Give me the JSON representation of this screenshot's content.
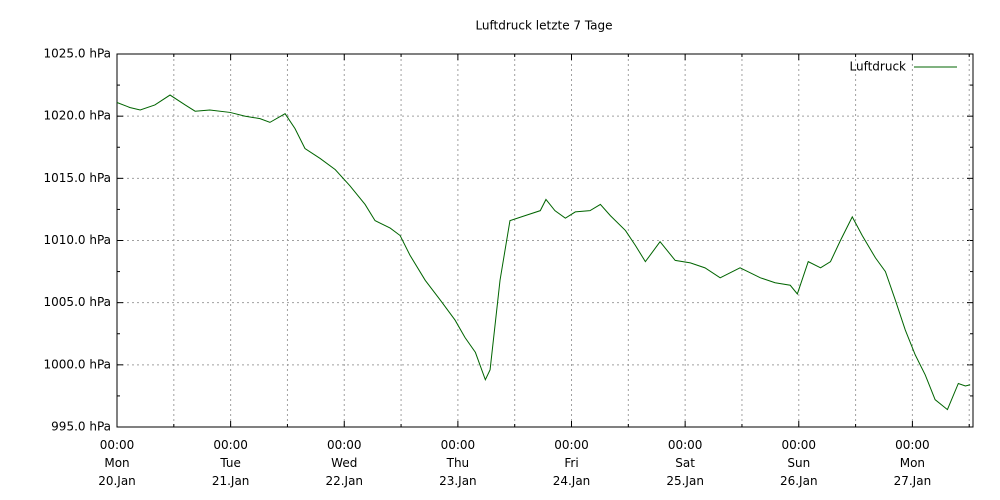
{
  "chart_data": {
    "type": "line",
    "title": "Luftdruck letzte 7 Tage",
    "legend": "top-right",
    "grid": true,
    "xlim": [
      0,
      180.8
    ],
    "ylim": [
      995,
      1025
    ],
    "xticks": [
      {
        "value": 0,
        "label": "00:00\nMon\n20.Jan"
      },
      {
        "value": 24,
        "label": "00:00\nTue\n21.Jan"
      },
      {
        "value": 48,
        "label": "00:00\nWed\n22.Jan"
      },
      {
        "value": 72,
        "label": "00:00\nThu\n23.Jan"
      },
      {
        "value": 96,
        "label": "00:00\nFri\n24.Jan"
      },
      {
        "value": 120,
        "label": "00:00\nSat\n25.Jan"
      },
      {
        "value": 144,
        "label": "00:00\nSun\n26.Jan"
      },
      {
        "value": 168,
        "label": "00:00\nMon\n27.Jan"
      }
    ],
    "yticks": [
      {
        "value": 995,
        "label": "995.0 hPa"
      },
      {
        "value": 1000,
        "label": "1000.0 hPa"
      },
      {
        "value": 1005,
        "label": "1005.0 hPa"
      },
      {
        "value": 1010,
        "label": "1010.0 hPa"
      },
      {
        "value": 1015,
        "label": "1015.0 hPa"
      },
      {
        "value": 1020,
        "label": "1020.0 hPa"
      },
      {
        "value": 1025,
        "label": "1025.0 hPa"
      }
    ],
    "x": [
      0,
      2.7,
      4.9,
      8.0,
      11.2,
      14.4,
      16.5,
      19.6,
      23.9,
      27.0,
      30.2,
      32.3,
      35.5,
      37.6,
      39.7,
      42.9,
      46.1,
      49.2,
      52.4,
      54.5,
      57.7,
      59.8,
      61.9,
      65.1,
      68.3,
      71.4,
      73.5,
      75.7,
      77.8,
      78.8,
      80.9,
      83.0,
      86.2,
      89.4,
      90.6,
      92.5,
      94.7,
      96.8,
      99.9,
      102.1,
      104.2,
      107.4,
      109.5,
      111.6,
      114.7,
      117.9,
      121.1,
      124.2,
      127.4,
      131.6,
      135.9,
      139.0,
      142.2,
      143.7,
      146.0,
      148.6,
      150.7,
      152.8,
      155.3,
      157.4,
      160.2,
      162.3,
      164.4,
      166.5,
      168.6,
      170.7,
      172.8,
      175.4,
      177.7,
      179.2,
      180.2
    ],
    "series": [
      {
        "name": "Luftdruck",
        "color": "#006400",
        "values": [
          1021.1,
          1020.7,
          1020.5,
          1020.9,
          1021.7,
          1020.9,
          1020.4,
          1020.5,
          1020.3,
          1020.0,
          1019.8,
          1019.5,
          1020.2,
          1019.0,
          1017.4,
          1016.6,
          1015.7,
          1014.4,
          1012.9,
          1011.6,
          1011.0,
          1010.4,
          1008.8,
          1006.8,
          1005.2,
          1003.6,
          1002.2,
          1001.0,
          998.8,
          999.6,
          1006.8,
          1011.6,
          1012.0,
          1012.4,
          1013.3,
          1012.4,
          1011.8,
          1012.3,
          1012.4,
          1012.9,
          1012.0,
          1010.8,
          1009.6,
          1008.3,
          1009.9,
          1008.4,
          1008.2,
          1007.8,
          1007.0,
          1007.8,
          1007.0,
          1006.6,
          1006.4,
          1005.7,
          1008.3,
          1007.8,
          1008.3,
          1010.0,
          1011.9,
          1010.4,
          1008.6,
          1007.5,
          1005.2,
          1002.8,
          1000.8,
          999.2,
          997.2,
          996.4,
          998.5,
          998.3,
          998.4
        ]
      }
    ]
  }
}
